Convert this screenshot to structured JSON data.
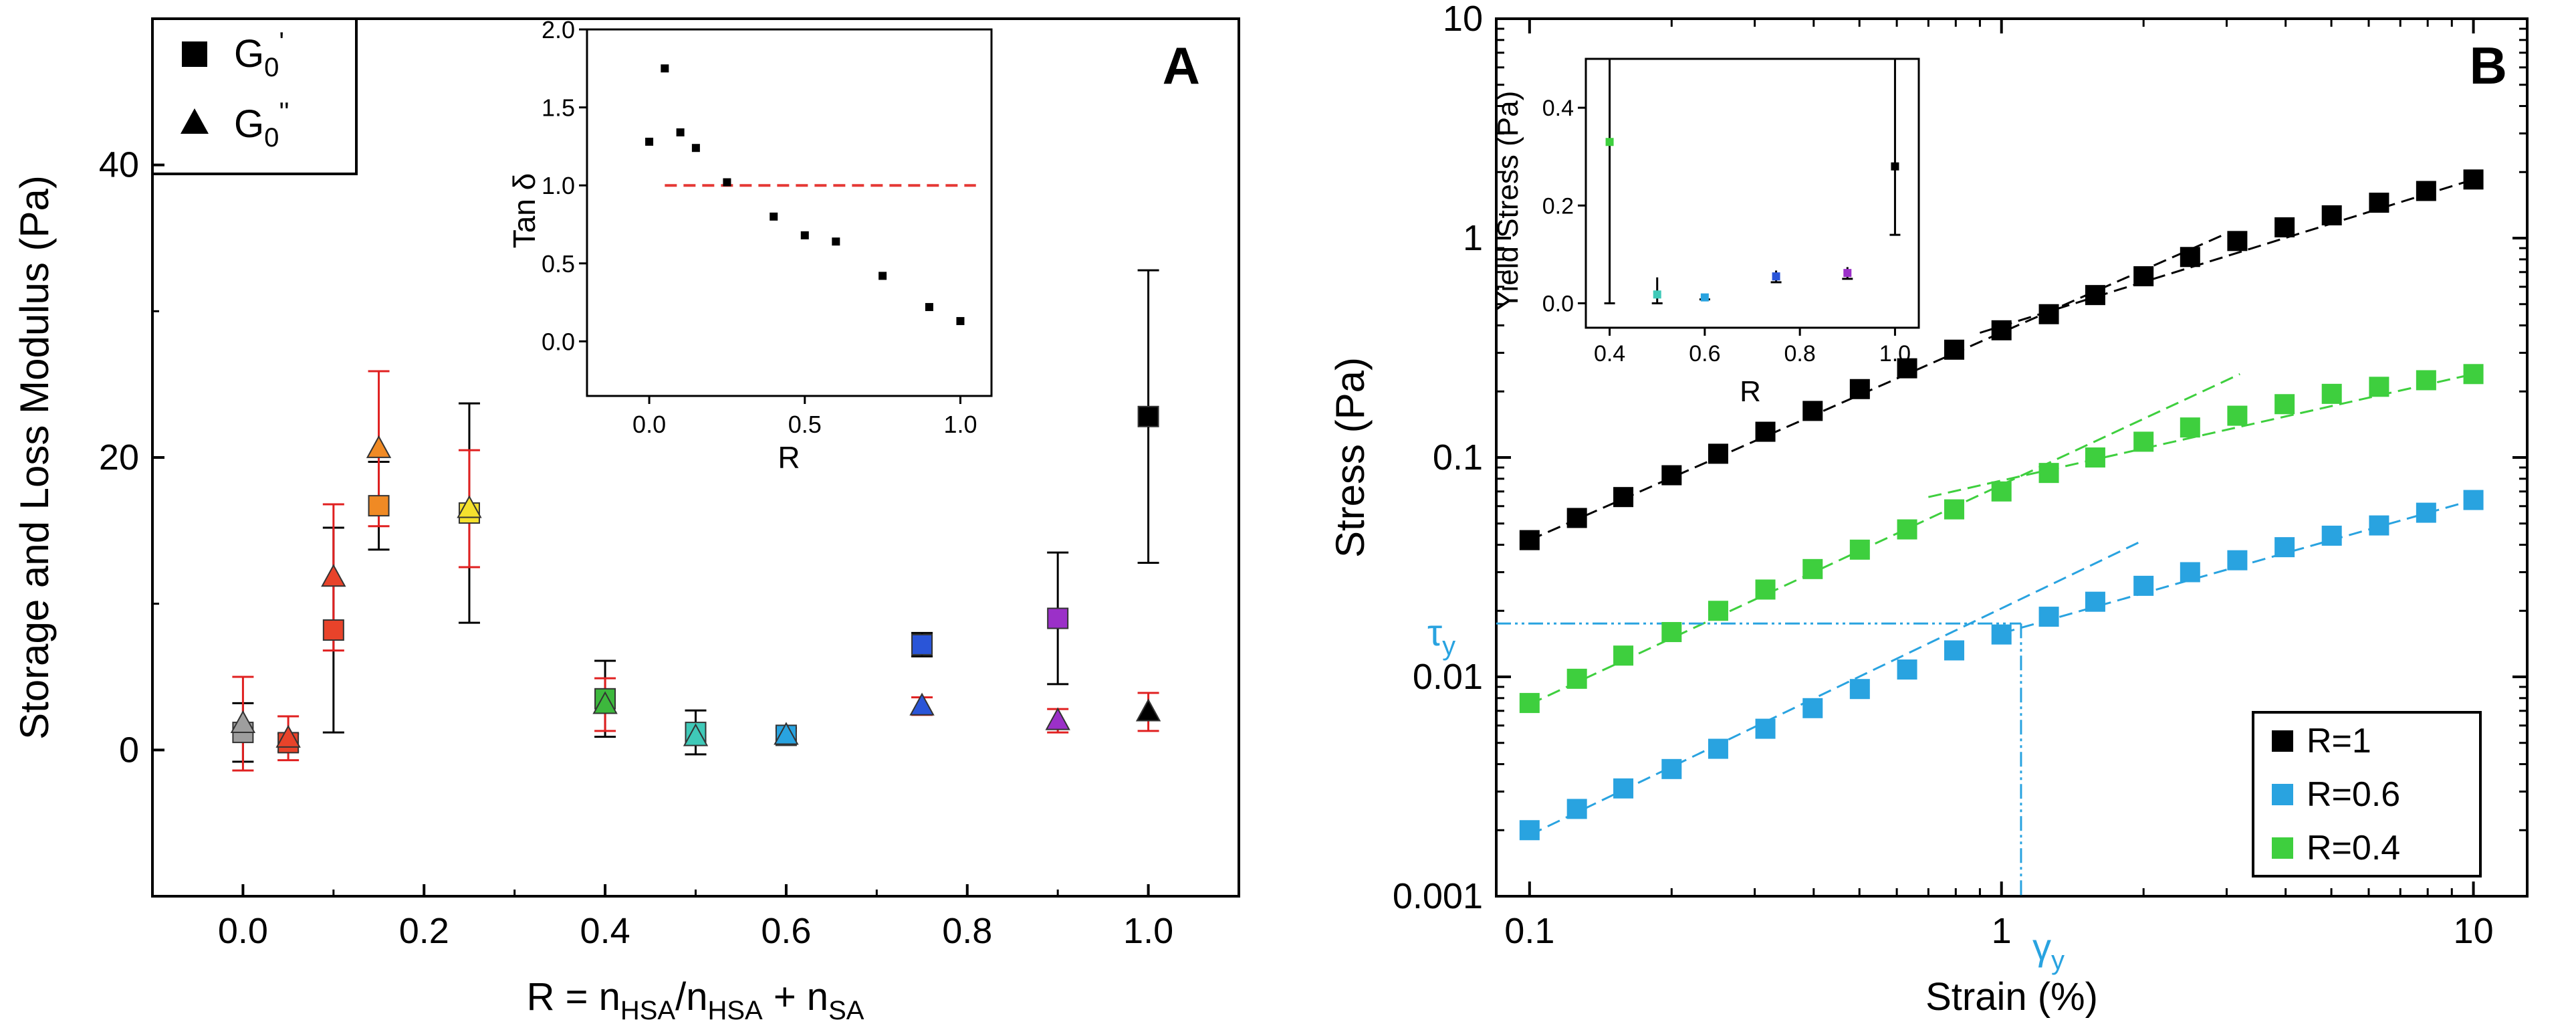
{
  "chart_data": [
    {
      "panel": "A",
      "type": "scatter",
      "panel_label": "A",
      "xlabel": {
        "main": "R = n",
        "sub1": "HSA",
        "mid": "/n",
        "sub2": "HSA",
        "plus": " + n",
        "sub3": "SA"
      },
      "ylabel": "Storage and Loss Modulus (Pa)",
      "xlim": [
        -0.1,
        1.1
      ],
      "ylim": [
        -10,
        50
      ],
      "xticks": [
        0.0,
        0.2,
        0.4,
        0.6,
        0.8,
        1.0
      ],
      "xtick_labels": [
        "0.0",
        "0.2",
        "0.4",
        "0.6",
        "0.8",
        "1.0"
      ],
      "yticks": [
        0,
        20,
        40
      ],
      "ytick_labels": [
        "0",
        "20",
        "40"
      ],
      "legend": {
        "position": "top-left",
        "entries": [
          {
            "symbol": "square",
            "label": "G",
            "sub": "0",
            "sup": "'"
          },
          {
            "symbol": "triangle",
            "label": "G",
            "sub": "0",
            "sup": "''"
          }
        ]
      },
      "series": [
        {
          "name": "G0'",
          "marker": "square",
          "points": [
            {
              "x": 0.0,
              "y": 1.2,
              "err": 2.0,
              "color": "#9e9e9e"
            },
            {
              "x": 0.05,
              "y": 0.5,
              "err": 0.6,
              "color": "#e8432a"
            },
            {
              "x": 0.1,
              "y": 8.2,
              "err": 7.0,
              "color": "#e8432a"
            },
            {
              "x": 0.15,
              "y": 16.7,
              "err": 3.0,
              "color": "#f08a24"
            },
            {
              "x": 0.25,
              "y": 16.2,
              "err": 7.5,
              "color": "#f5e12e"
            },
            {
              "x": 0.4,
              "y": 3.5,
              "err": 2.6,
              "color": "#3db83d"
            },
            {
              "x": 0.5,
              "y": 1.2,
              "err": 1.5,
              "color": "#3fc9b8"
            },
            {
              "x": 0.6,
              "y": 1.0,
              "err": 0.5,
              "color": "#29a3e0"
            },
            {
              "x": 0.75,
              "y": 7.2,
              "err": 0.8,
              "color": "#2a55d8"
            },
            {
              "x": 0.9,
              "y": 9.0,
              "err": 4.5,
              "color": "#9b30c8"
            },
            {
              "x": 1.0,
              "y": 22.8,
              "err": 10.0,
              "color": "#000000"
            }
          ]
        },
        {
          "name": "G0''",
          "marker": "triangle",
          "points": [
            {
              "x": 0.0,
              "y": 1.8,
              "err": 3.2,
              "color": "#9e9e9e"
            },
            {
              "x": 0.05,
              "y": 0.8,
              "err": 1.5,
              "color": "#e8432a"
            },
            {
              "x": 0.1,
              "y": 11.8,
              "err": 5.0,
              "color": "#e8432a"
            },
            {
              "x": 0.15,
              "y": 20.6,
              "err": 5.3,
              "color": "#f08a24"
            },
            {
              "x": 0.25,
              "y": 16.5,
              "err": 4.0,
              "color": "#f5e12e"
            },
            {
              "x": 0.4,
              "y": 3.1,
              "err": 1.8,
              "color": "#3db83d"
            },
            {
              "x": 0.5,
              "y": 0.9,
              "err": 0.4,
              "color": "#3fc9b8"
            },
            {
              "x": 0.6,
              "y": 1.0,
              "err": 0.3,
              "color": "#29a3e0"
            },
            {
              "x": 0.75,
              "y": 3.0,
              "err": 0.6,
              "color": "#2a55d8"
            },
            {
              "x": 0.9,
              "y": 2.0,
              "err": 0.8,
              "color": "#9b30c8"
            },
            {
              "x": 1.0,
              "y": 2.6,
              "err": 1.3,
              "color": "#000000"
            }
          ]
        }
      ],
      "inset": {
        "type": "scatter",
        "xlabel": "R",
        "ylabel": "Tan δ",
        "xlim": [
          -0.2,
          1.1
        ],
        "ylim": [
          -0.35,
          2.0
        ],
        "xticks": [
          0.0,
          0.5,
          1.0
        ],
        "xtick_labels": [
          "0.0",
          "0.5",
          "1.0"
        ],
        "yticks": [
          0.0,
          0.5,
          1.0,
          1.5,
          2.0
        ],
        "ytick_labels": [
          "0.0",
          "0.5",
          "1.0",
          "1.5",
          "2.0"
        ],
        "reference_line": {
          "y": 1.0,
          "x_from": 0.05,
          "x_to": 1.05,
          "color": "#e53935",
          "style": "dashed"
        },
        "x": [
          0.0,
          0.05,
          0.1,
          0.15,
          0.25,
          0.4,
          0.5,
          0.6,
          0.75,
          0.9,
          1.0
        ],
        "y": [
          1.28,
          1.75,
          1.34,
          1.24,
          1.02,
          0.8,
          0.68,
          0.64,
          0.42,
          0.22,
          0.13
        ]
      }
    },
    {
      "panel": "B",
      "type": "scatter",
      "scale": "log-log",
      "panel_label": "B",
      "xlabel": "Strain (%)",
      "ylabel": "Stress (Pa)",
      "xlim": [
        0.085,
        13
      ],
      "ylim": [
        0.001,
        10
      ],
      "xticks": [
        0.1,
        1,
        10
      ],
      "xtick_labels": [
        "0.1",
        "1",
        "10"
      ],
      "yticks": [
        0.001,
        0.01,
        0.1,
        1,
        10
      ],
      "ytick_labels": [
        "0.001",
        "0.01",
        "0.1",
        "1",
        "10"
      ],
      "legend": {
        "position": "bottom-right",
        "entries": [
          {
            "label": "R=1",
            "color": "#000000"
          },
          {
            "label": "R=0.6",
            "color": "#29a3e0"
          },
          {
            "label": "R=0.4",
            "color": "#3ecf3e"
          }
        ]
      },
      "series": [
        {
          "name": "R=1",
          "color": "#000000",
          "x": [
            0.1,
            0.126,
            0.158,
            0.2,
            0.251,
            0.316,
            0.398,
            0.501,
            0.631,
            0.794,
            1.0,
            1.26,
            1.58,
            2.0,
            2.51,
            3.16,
            3.98,
            5.01,
            6.31,
            7.94,
            10.0
          ],
          "y": [
            0.042,
            0.053,
            0.066,
            0.083,
            0.104,
            0.131,
            0.163,
            0.205,
            0.255,
            0.31,
            0.38,
            0.45,
            0.55,
            0.67,
            0.82,
            0.97,
            1.12,
            1.27,
            1.45,
            1.64,
            1.85
          ],
          "fits": [
            {
              "x": [
                0.1,
                3.0
              ],
              "y": [
                0.042,
                1.05
              ]
            },
            {
              "x": [
                0.9,
                10.0
              ],
              "y": [
                0.37,
                1.85
              ]
            }
          ]
        },
        {
          "name": "R=0.6",
          "color": "#29a3e0",
          "x": [
            0.1,
            0.126,
            0.158,
            0.2,
            0.251,
            0.316,
            0.398,
            0.501,
            0.631,
            0.794,
            1.0,
            1.26,
            1.58,
            2.0,
            2.51,
            3.16,
            3.98,
            5.01,
            6.31,
            7.94,
            10.0
          ],
          "y": [
            0.002,
            0.0025,
            0.0031,
            0.0038,
            0.0047,
            0.0058,
            0.0072,
            0.0088,
            0.0108,
            0.0132,
            0.0156,
            0.0188,
            0.022,
            0.026,
            0.03,
            0.034,
            0.039,
            0.044,
            0.049,
            0.056,
            0.064
          ],
          "fits": [
            {
              "x": [
                0.1,
                2.0
              ],
              "y": [
                0.0019,
                0.042
              ]
            },
            {
              "x": [
                1.0,
                10.0
              ],
              "y": [
                0.0158,
                0.064
              ]
            }
          ]
        },
        {
          "name": "R=0.4",
          "color": "#3ecf3e",
          "x": [
            0.1,
            0.126,
            0.158,
            0.2,
            0.251,
            0.316,
            0.398,
            0.501,
            0.631,
            0.794,
            1.0,
            1.26,
            1.58,
            2.0,
            2.51,
            3.16,
            3.98,
            5.01,
            6.31,
            7.94,
            10.0
          ],
          "y": [
            0.0076,
            0.0098,
            0.0125,
            0.016,
            0.02,
            0.025,
            0.031,
            0.038,
            0.047,
            0.058,
            0.07,
            0.085,
            0.1,
            0.118,
            0.137,
            0.155,
            0.175,
            0.195,
            0.21,
            0.225,
            0.24
          ],
          "fits": [
            {
              "x": [
                0.1,
                3.2
              ],
              "y": [
                0.0075,
                0.24
              ]
            },
            {
              "x": [
                0.7,
                10.0
              ],
              "y": [
                0.066,
                0.24
              ]
            }
          ]
        }
      ],
      "annotations": {
        "tau_y": {
          "label": "τ",
          "sub": "y",
          "value": 0.0175,
          "color": "#29a3e0"
        },
        "gamma_y": {
          "label": "γ",
          "sub": "y",
          "value": 1.1,
          "color": "#29a3e0"
        }
      },
      "inset": {
        "type": "scatter",
        "xlabel": "R",
        "ylabel": "Yield Stress (Pa)",
        "xlim": [
          0.35,
          1.05
        ],
        "ylim": [
          -0.05,
          0.5
        ],
        "xticks": [
          0.4,
          0.6,
          0.8,
          1.0
        ],
        "xtick_labels": [
          "0.4",
          "0.6",
          "0.8",
          "1.0"
        ],
        "yticks": [
          0.0,
          0.2,
          0.4
        ],
        "ytick_labels": [
          "0.0",
          "0.2",
          "0.4"
        ],
        "points": [
          {
            "x": 0.4,
            "y": 0.33,
            "err_low": 0.33,
            "err_high": 0.5,
            "color": "#3ecf3e"
          },
          {
            "x": 0.5,
            "y": 0.018,
            "err_low": 0.018,
            "err_high": 0.035,
            "color": "#3fc9b8"
          },
          {
            "x": 0.6,
            "y": 0.012,
            "err_low": 0.004,
            "err_high": 0.004,
            "color": "#29a3e0"
          },
          {
            "x": 0.75,
            "y": 0.055,
            "err_low": 0.012,
            "err_high": 0.012,
            "color": "#2a55d8"
          },
          {
            "x": 0.9,
            "y": 0.062,
            "err_low": 0.012,
            "err_high": 0.012,
            "color": "#9b30c8"
          },
          {
            "x": 1.0,
            "y": 0.28,
            "err_low": 0.14,
            "err_high": 0.25,
            "color": "#000000"
          }
        ]
      }
    }
  ]
}
